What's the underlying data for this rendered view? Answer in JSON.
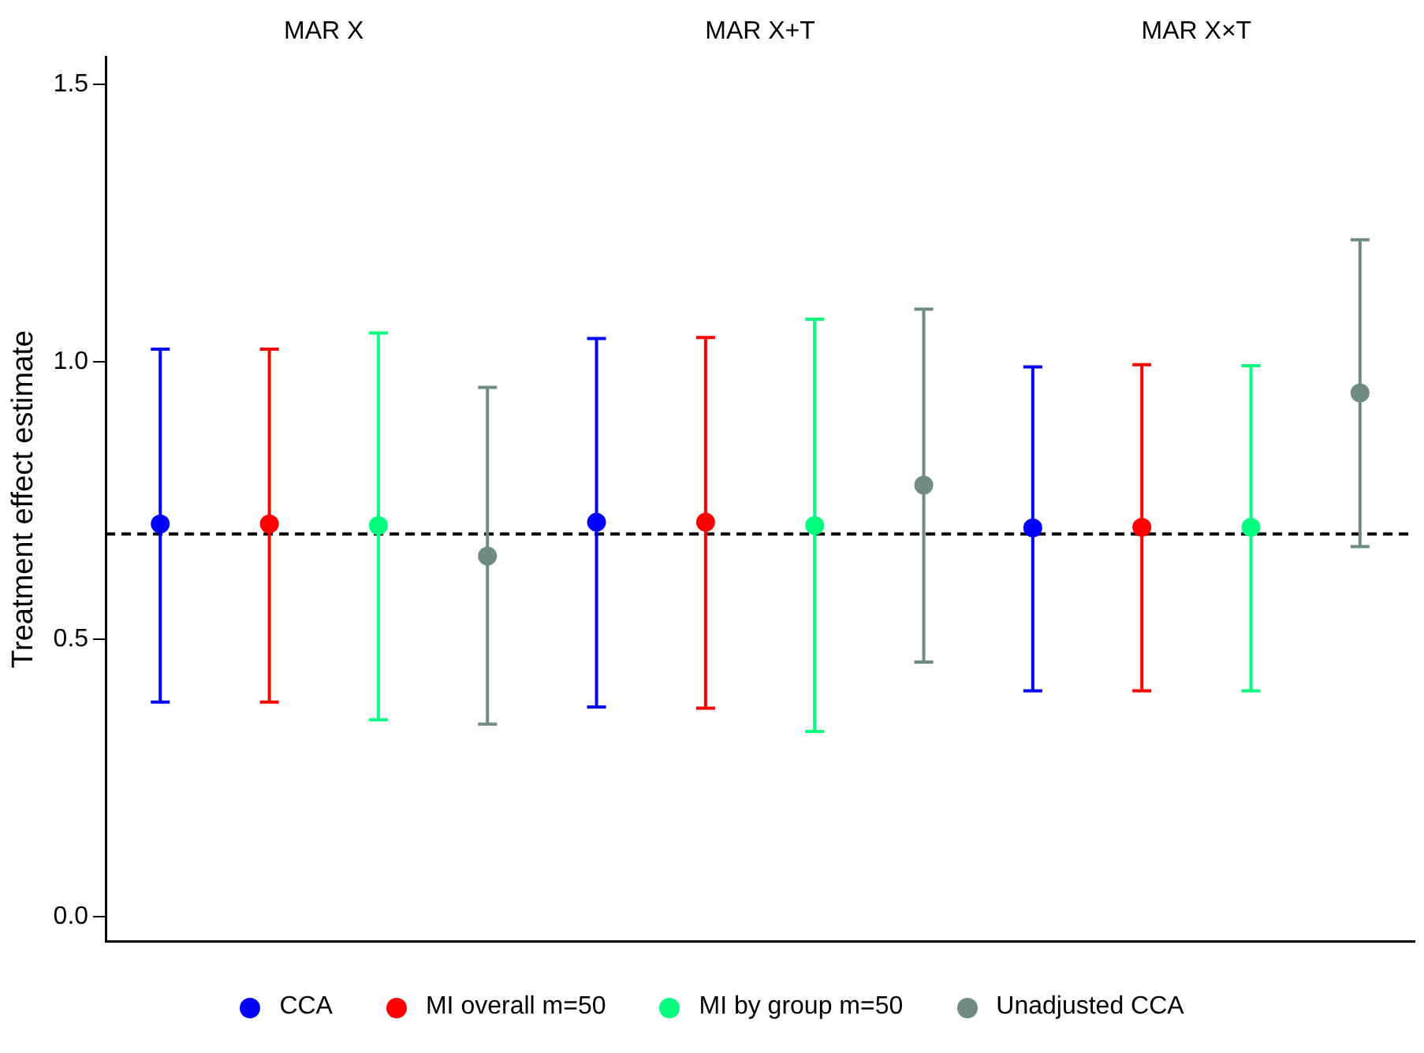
{
  "chart_data": {
    "type": "scatter",
    "ylabel": "Treatment effect estimate",
    "annotations": [
      "MAR X",
      "MAR X+T",
      "MAR X×T"
    ],
    "categories": [
      null,
      null,
      null,
      null,
      null,
      null,
      null,
      null,
      null,
      null,
      null,
      null
    ],
    "ylim": [
      -0.045,
      1.55
    ],
    "yticks": [
      {
        "value": 0,
        "label": "0.0"
      },
      {
        "value": 0.5,
        "label": "0.5"
      },
      {
        "value": 1,
        "label": "1.0"
      },
      {
        "value": 1.5,
        "label": "1.5"
      }
    ],
    "tick_labels": "y",
    "grid": false,
    "marker": "circle",
    "legend": "bottom",
    "ref_lines": [
      {
        "axis": "y",
        "value": 0.69,
        "color": "#000000",
        "line_style": "dashed"
      }
    ],
    "series": [
      {
        "name": "CCA",
        "color": "#0000ff",
        "values": [
          0.708,
          null,
          null,
          null,
          0.711,
          null,
          null,
          null,
          0.701,
          null,
          null,
          null
        ],
        "errors": [
          [
            0.387,
            1.023
          ],
          null,
          null,
          null,
          [
            0.378,
            1.042
          ],
          null,
          null,
          null,
          [
            0.407,
            0.991
          ],
          null,
          null,
          null
        ]
      },
      {
        "name": "MI overall m=50",
        "color": "#ff0000",
        "values": [
          null,
          0.708,
          null,
          null,
          null,
          0.711,
          null,
          null,
          null,
          0.702,
          null,
          null
        ],
        "errors": [
          null,
          [
            0.387,
            1.023
          ],
          null,
          null,
          null,
          [
            0.376,
            1.044
          ],
          null,
          null,
          null,
          [
            0.407,
            0.995
          ],
          null,
          null
        ]
      },
      {
        "name": "MI by group m=50",
        "color": "#00ff7f",
        "values": [
          null,
          null,
          0.705,
          null,
          null,
          null,
          0.705,
          null,
          null,
          null,
          0.702,
          null
        ],
        "errors": [
          null,
          null,
          [
            0.355,
            1.052
          ],
          null,
          null,
          null,
          [
            0.334,
            1.077
          ],
          null,
          null,
          null,
          [
            0.407,
            0.993
          ],
          null
        ]
      },
      {
        "name": "Unadjusted CCA",
        "color": "#708b80",
        "values": [
          null,
          null,
          null,
          0.65,
          null,
          null,
          null,
          0.778,
          null,
          null,
          null,
          0.944
        ],
        "errors": [
          null,
          null,
          null,
          [
            0.347,
            0.954
          ],
          null,
          null,
          null,
          [
            0.459,
            1.095
          ],
          null,
          null,
          null,
          [
            0.667,
            1.22
          ]
        ]
      }
    ]
  }
}
